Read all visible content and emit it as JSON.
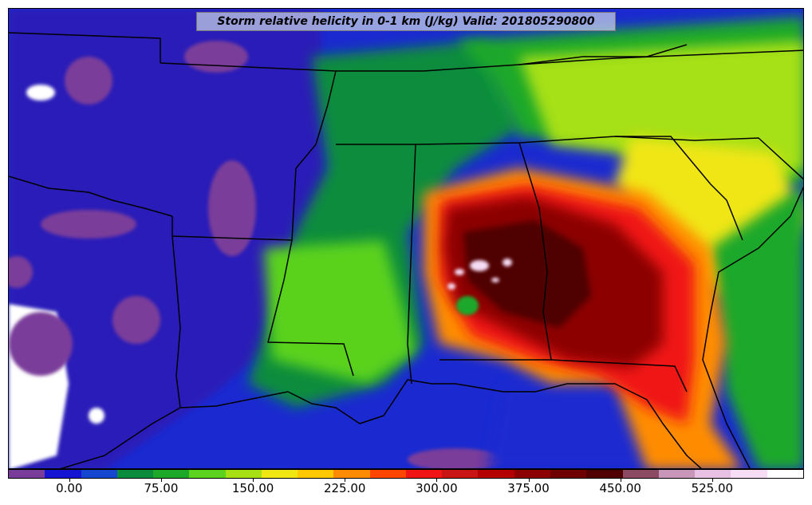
{
  "title": "Storm relative helicity in 0-1 km (J/kg) Valid: 201805290800",
  "colorbar": {
    "min": -50,
    "max": 600,
    "step": 25,
    "colors": [
      "#7a3c9a",
      "#1414d2",
      "#1446d0",
      "#0a8c3c",
      "#1ea82a",
      "#5ad21e",
      "#a6e014",
      "#f0e614",
      "#ffc800",
      "#ff8c00",
      "#ff4600",
      "#f01414",
      "#c81414",
      "#b40000",
      "#8c0000",
      "#6e0000",
      "#500000",
      "#8c4a62",
      "#c896b8",
      "#e8c0e4",
      "#f6dcf4",
      "#ffffff"
    ],
    "tick_labels": [
      {
        "label": "0.00",
        "value": 0
      },
      {
        "label": "75.00",
        "value": 75
      },
      {
        "label": "150.00",
        "value": 150
      },
      {
        "label": "225.00",
        "value": 225
      },
      {
        "label": "300.00",
        "value": 300
      },
      {
        "label": "375.00",
        "value": 375
      },
      {
        "label": "450.00",
        "value": 450
      },
      {
        "label": "525.00",
        "value": 525
      }
    ]
  },
  "map_colors": {
    "water": "#1a2ad0",
    "low": "#2a1ab8",
    "purple": "#7a3c9a",
    "green": "#0a8c3c",
    "light_green": "#5ad21e",
    "yellow_green": "#a6e014",
    "yellow": "#f0e614",
    "orange": "#ff8c00",
    "red": "#f01414",
    "dark_red": "#8c0000",
    "maroon": "#500000",
    "border": "#000000"
  }
}
